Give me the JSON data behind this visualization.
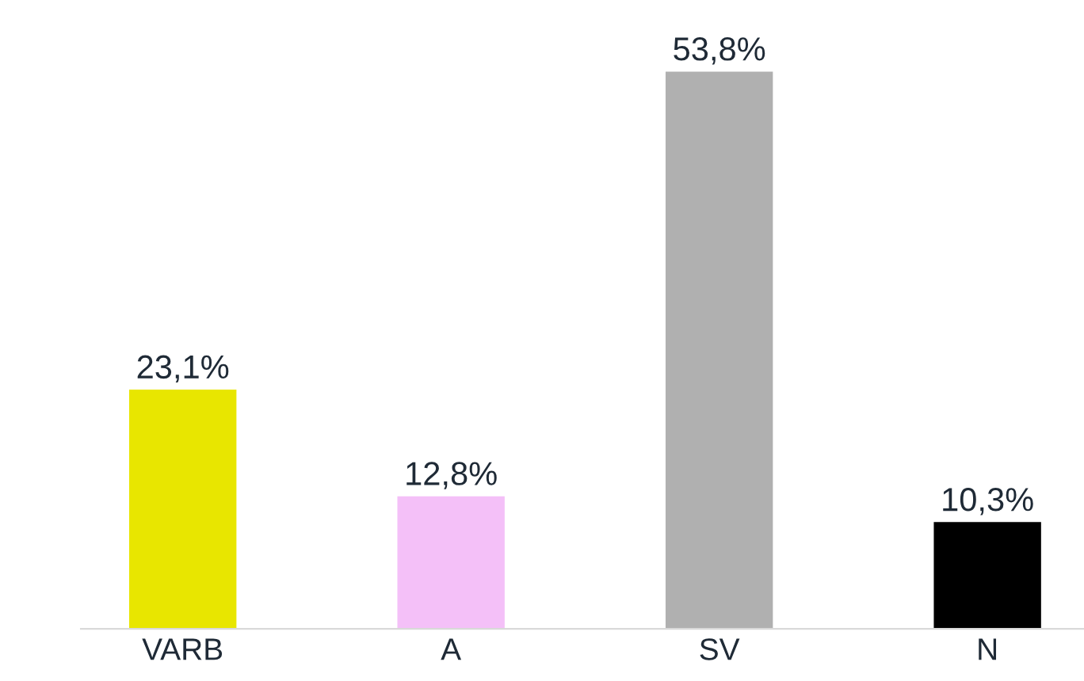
{
  "chart_data": {
    "type": "bar",
    "categories": [
      "VARB",
      "A",
      "SV",
      "N"
    ],
    "values": [
      23.1,
      12.8,
      53.8,
      10.3
    ],
    "value_labels": [
      "23,1%",
      "12,8%",
      "53,8%",
      "10,3%"
    ],
    "colors": [
      "#e8e600",
      "#f4c0f8",
      "#b0b0b0",
      "#000000"
    ],
    "grid": false,
    "legend": false
  }
}
